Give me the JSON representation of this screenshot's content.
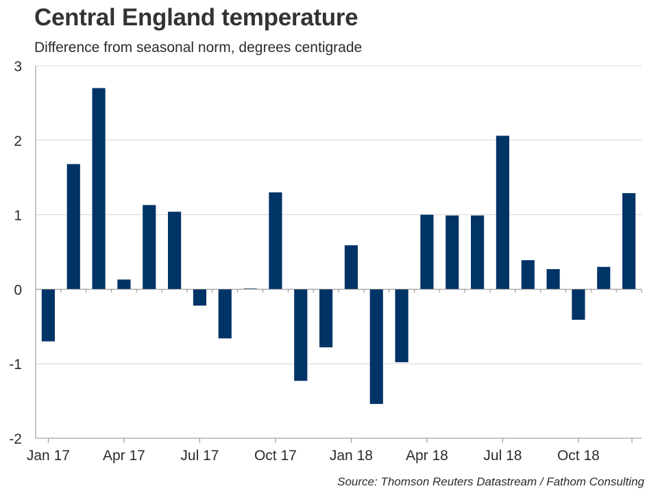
{
  "chart_data": {
    "type": "bar",
    "title": "Central England temperature",
    "subtitle": "Difference from seasonal norm, degrees centigrade",
    "xlabel": "",
    "ylabel": "",
    "ylim": [
      -2,
      3
    ],
    "yticks": [
      3,
      2,
      1,
      0,
      -1,
      -2
    ],
    "ytick_labels": [
      "3",
      "2",
      "1",
      "0",
      "-1",
      "-2"
    ],
    "categories": [
      "Jan 17",
      "Feb 17",
      "Mar 17",
      "Apr 17",
      "May 17",
      "Jun 17",
      "Jul 17",
      "Aug 17",
      "Sep 17",
      "Oct 17",
      "Nov 17",
      "Dec 17",
      "Jan 18",
      "Feb 18",
      "Mar 18",
      "Apr 18",
      "May 18",
      "Jun 18",
      "Jul 18",
      "Aug 18",
      "Sep 18",
      "Oct 18",
      "Nov 18",
      "Dec 18"
    ],
    "x_tick_labels": [
      {
        "index": 0,
        "label": "Jan 17"
      },
      {
        "index": 3,
        "label": "Apr 17"
      },
      {
        "index": 6,
        "label": "Jul 17"
      },
      {
        "index": 9,
        "label": "Oct 17"
      },
      {
        "index": 12,
        "label": "Jan 18"
      },
      {
        "index": 15,
        "label": "Apr 18"
      },
      {
        "index": 18,
        "label": "Jul 18"
      },
      {
        "index": 21,
        "label": "Oct 18"
      }
    ],
    "values": [
      -0.7,
      1.68,
      2.7,
      0.13,
      1.13,
      1.04,
      -0.22,
      -0.66,
      0.01,
      1.3,
      -1.23,
      -0.78,
      0.59,
      -1.54,
      -0.98,
      1.0,
      0.99,
      0.99,
      2.06,
      0.39,
      0.27,
      -0.41,
      0.3,
      1.29
    ],
    "grid": true,
    "legend": "none",
    "bar_color": "#003366"
  },
  "source": "Source: Thomson Reuters Datastream / Fathom Consulting"
}
